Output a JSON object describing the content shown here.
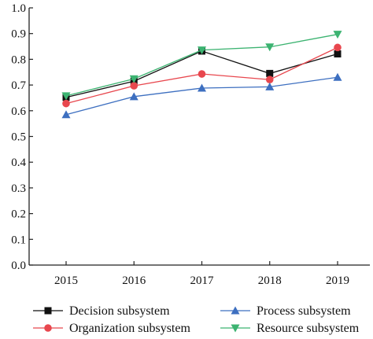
{
  "chart_data": {
    "type": "line",
    "title": "",
    "xlabel": "",
    "ylabel": "",
    "categories": [
      "2015",
      "2016",
      "2017",
      "2018",
      "2019"
    ],
    "ylim": [
      0,
      1.0
    ],
    "yticks": [
      0.0,
      0.1,
      0.2,
      0.3,
      0.4,
      0.5,
      0.6,
      0.7,
      0.8,
      0.9,
      1.0
    ],
    "ytick_labels": [
      "0.0",
      "0.1",
      "0.2",
      "0.3",
      "0.4",
      "0.5",
      "0.6",
      "0.7",
      "0.8",
      "0.9",
      "1.0"
    ],
    "grid": false,
    "legend_position": "bottom",
    "series": [
      {
        "name": "Decision subsystem",
        "color": "#111111",
        "marker": "square",
        "values": [
          0.652,
          0.715,
          0.832,
          0.745,
          0.821
        ]
      },
      {
        "name": "Organization subsystem",
        "color": "#e8474e",
        "marker": "circle",
        "values": [
          0.628,
          0.697,
          0.743,
          0.721,
          0.846
        ]
      },
      {
        "name": "Process subsystem",
        "color": "#3d6fc0",
        "marker": "triangle-up",
        "values": [
          0.585,
          0.655,
          0.688,
          0.693,
          0.73
        ]
      },
      {
        "name": "Resource subsystem",
        "color": "#3cb371",
        "marker": "triangle-down",
        "values": [
          0.658,
          0.724,
          0.836,
          0.848,
          0.897
        ]
      }
    ]
  }
}
